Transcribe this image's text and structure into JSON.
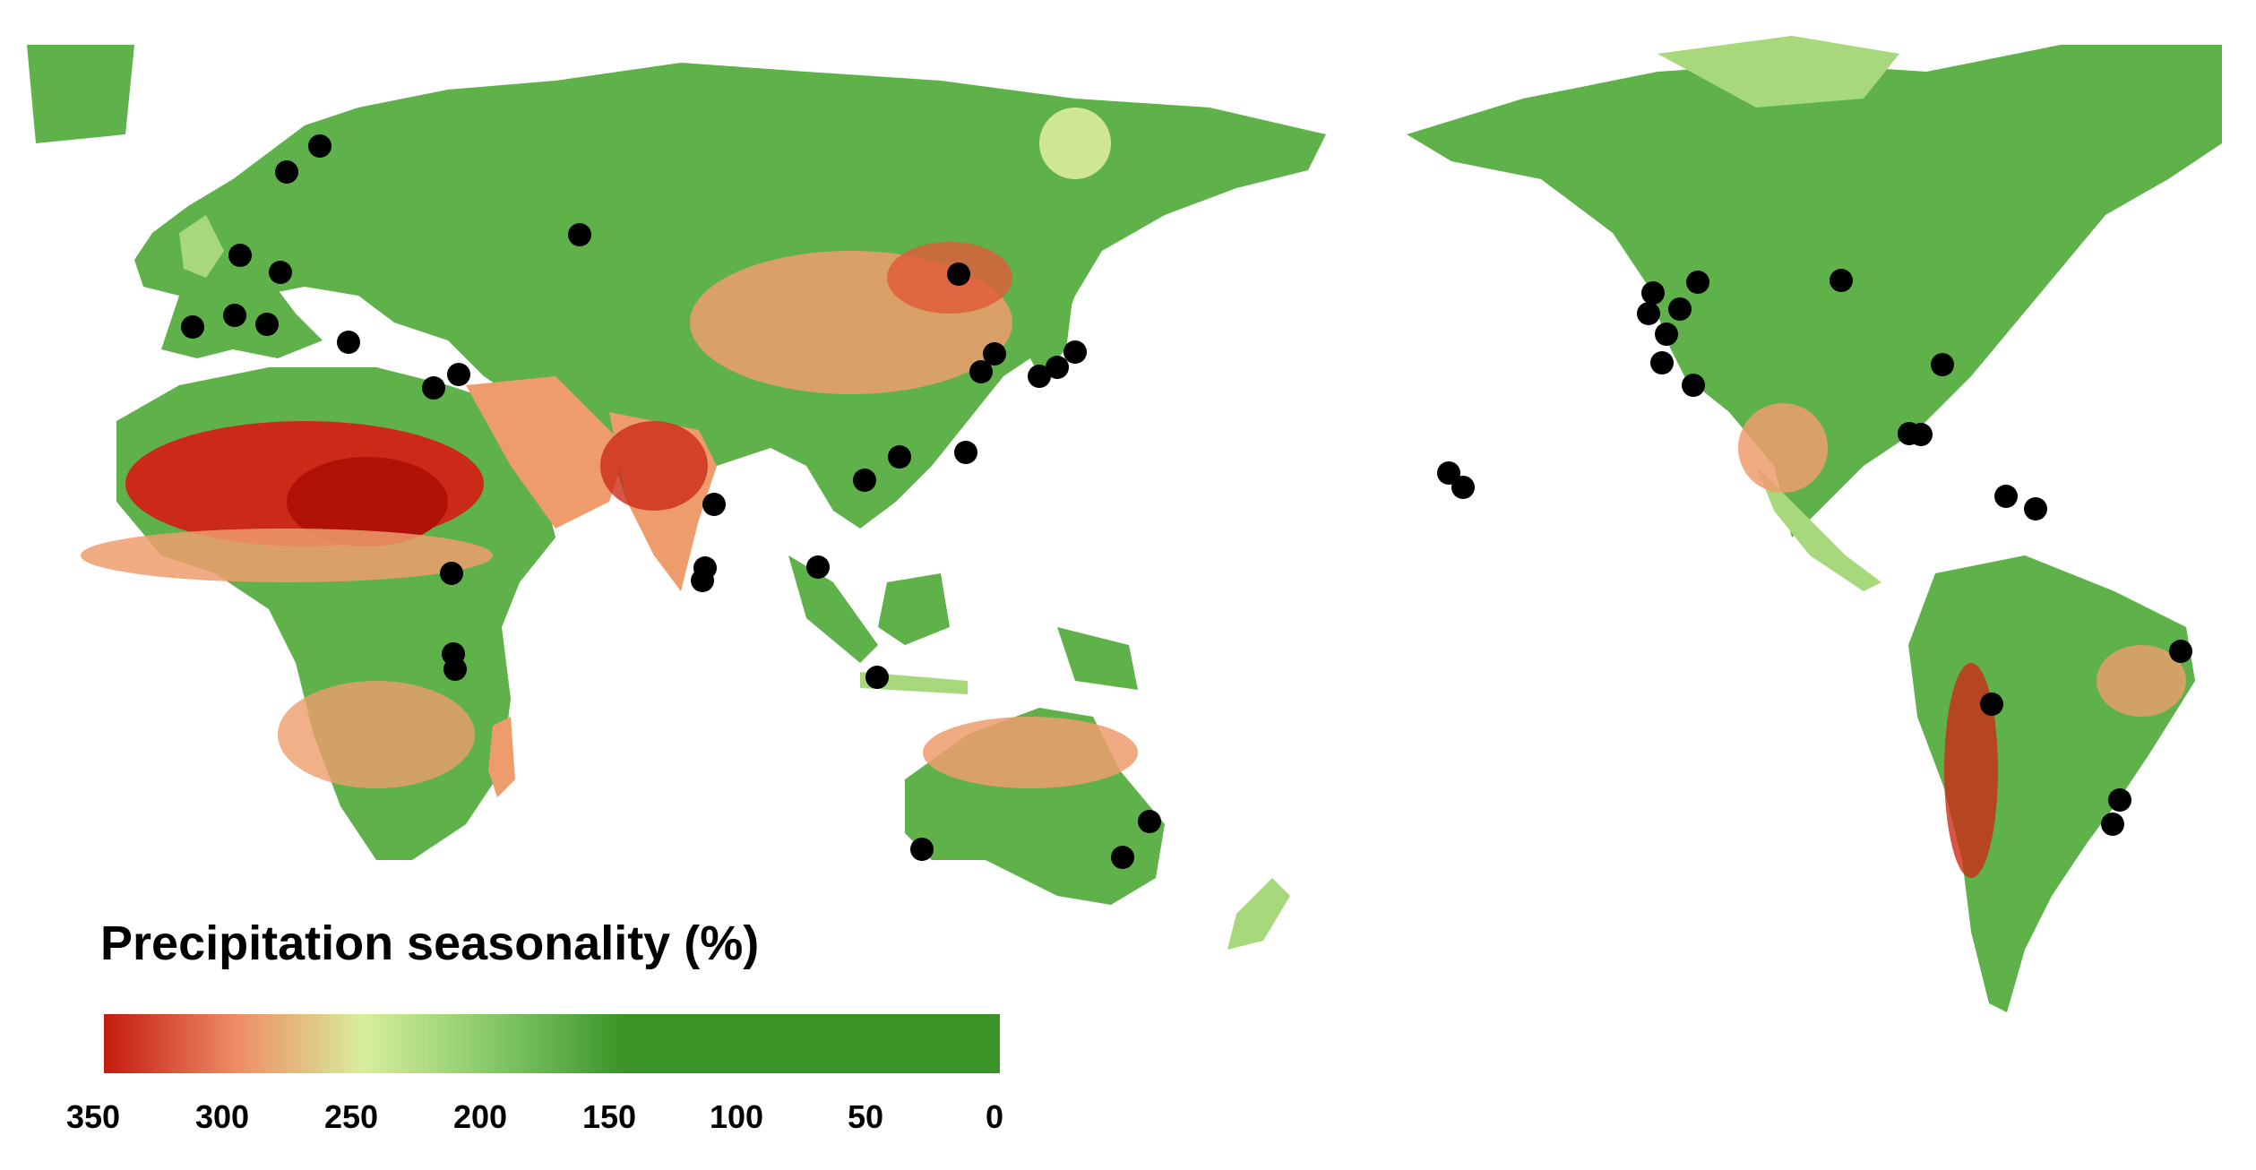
{
  "legend": {
    "title": "Precipitation seasonality (%)",
    "ticks": [
      "350",
      "300",
      "250",
      "200",
      "150",
      "100",
      "50",
      "0"
    ],
    "colors": {
      "high": "#c41a10",
      "mid_high": "#f0a070",
      "mid": "#d8ee9a",
      "mid_low": "#7cc463",
      "low": "#3a9428"
    }
  },
  "map": {
    "land_colors": {
      "green": "#5fb24a",
      "light_green": "#a8d87c",
      "pale": "#dcec9a",
      "orange": "#ef9c6c",
      "red": "#cc2a18"
    },
    "site_marker_color": "#000000"
  }
}
